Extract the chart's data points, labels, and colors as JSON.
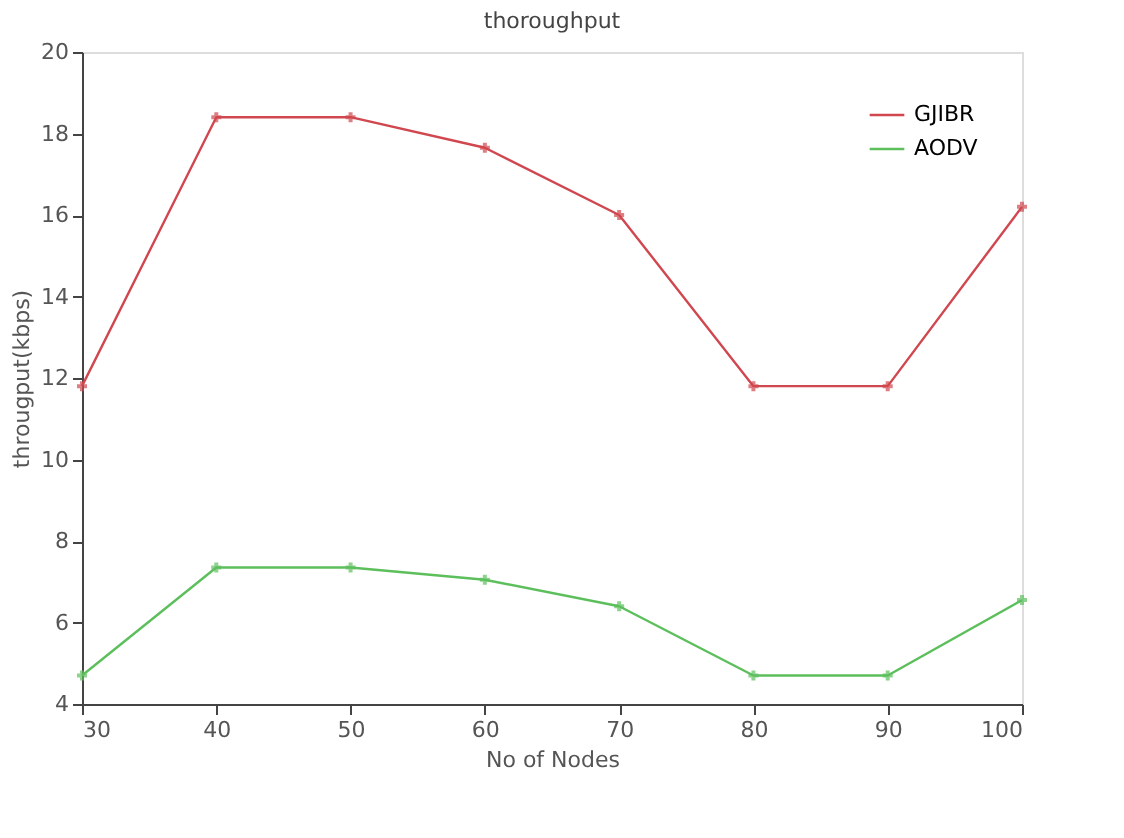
{
  "chart_data": {
    "type": "line",
    "title": "thoroughput",
    "xlabel": "No of Nodes",
    "ylabel": "througput(kbps)",
    "x": [
      30,
      40,
      50,
      60,
      70,
      80,
      90,
      100
    ],
    "series": [
      {
        "name": "GJIBR",
        "color": "#d0474f",
        "values": [
          11.8,
          18.4,
          18.4,
          17.65,
          16.0,
          11.8,
          11.8,
          16.2
        ]
      },
      {
        "name": "AODV",
        "color": "#5cbf5c",
        "values": [
          4.7,
          7.35,
          7.35,
          7.05,
          6.4,
          4.7,
          4.7,
          6.55
        ]
      }
    ],
    "xlim": [
      30,
      100
    ],
    "xticks": [
      30,
      40,
      50,
      60,
      70,
      80,
      90,
      100
    ],
    "ylim": [
      4,
      20
    ],
    "yticks": [
      4,
      6,
      8,
      10,
      12,
      14,
      16,
      18,
      20
    ],
    "grid": false,
    "legend": "top right",
    "marker": "cross",
    "line_style": "solid"
  }
}
